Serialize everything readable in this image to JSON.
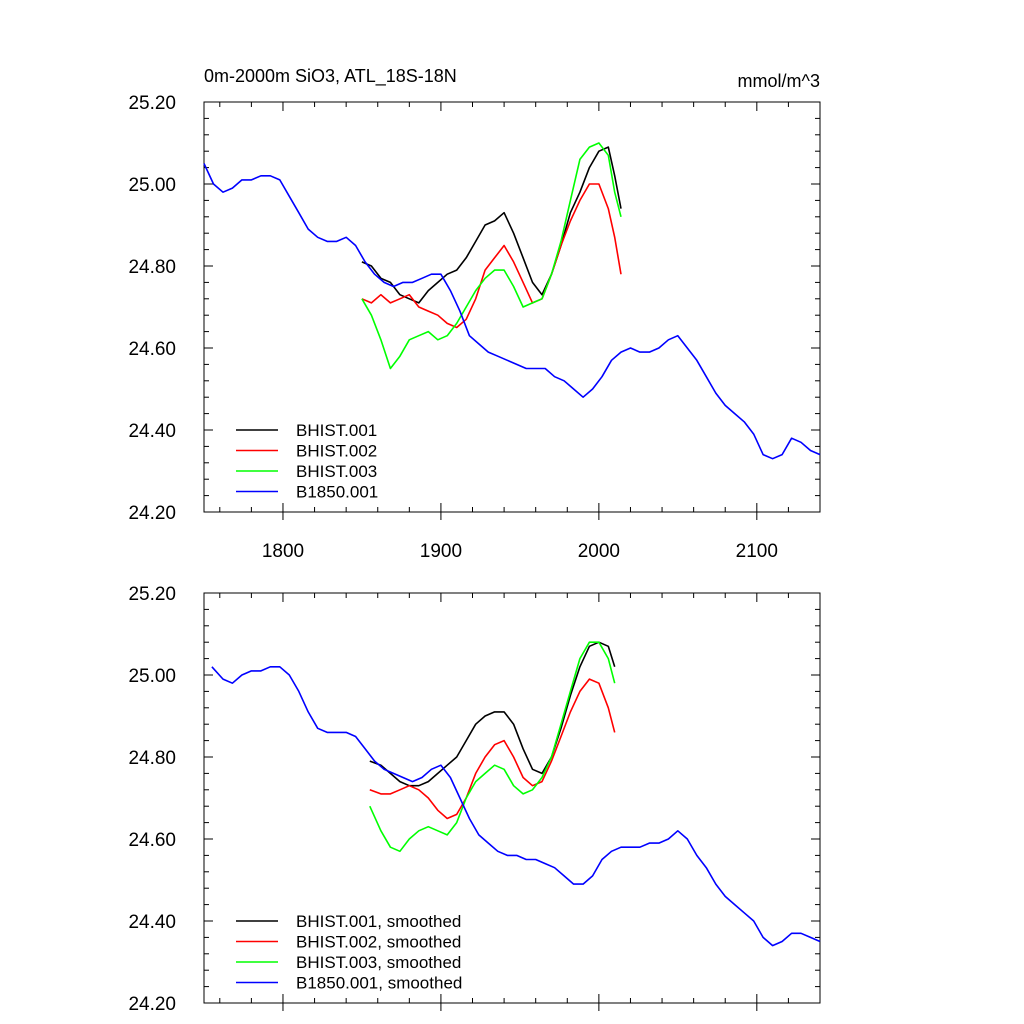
{
  "chart_data": [
    {
      "type": "line",
      "title": "0m-2000m SiO3, ATL_18S-18N",
      "units": "mmol/m^3",
      "xlim": [
        1750,
        2140
      ],
      "ylim": [
        24.2,
        25.2
      ],
      "xticks": [
        1800,
        1900,
        2000,
        2100
      ],
      "xtick_labels": [
        "1800",
        "1900",
        "2000",
        "2100"
      ],
      "yticks": [
        24.2,
        24.4,
        24.6,
        24.8,
        25.0,
        25.2
      ],
      "ytick_labels": [
        "24.20",
        "24.40",
        "24.60",
        "24.80",
        "25.00",
        "25.20"
      ],
      "legend_position": "bottom-left",
      "series": [
        {
          "name": "BHIST.001",
          "color": "#000000",
          "x": [
            1850,
            1856,
            1862,
            1868,
            1874,
            1880,
            1886,
            1892,
            1898,
            1904,
            1910,
            1916,
            1922,
            1928,
            1934,
            1940,
            1946,
            1952,
            1958,
            1964,
            1970,
            1976,
            1982,
            1988,
            1994,
            2000,
            2006,
            2010,
            2014
          ],
          "y": [
            24.81,
            24.8,
            24.77,
            24.76,
            24.73,
            24.72,
            24.71,
            24.74,
            24.76,
            24.78,
            24.79,
            24.82,
            24.86,
            24.9,
            24.91,
            24.93,
            24.88,
            24.82,
            24.76,
            24.73,
            24.78,
            24.85,
            24.93,
            24.98,
            25.04,
            25.08,
            25.09,
            25.02,
            24.94
          ]
        },
        {
          "name": "BHIST.002",
          "color": "#ff0000",
          "x": [
            1850,
            1856,
            1862,
            1868,
            1874,
            1880,
            1886,
            1892,
            1898,
            1904,
            1910,
            1916,
            1922,
            1928,
            1934,
            1940,
            1946,
            1952,
            1958,
            1964,
            1970,
            1976,
            1982,
            1988,
            1994,
            2000,
            2006,
            2010,
            2014
          ],
          "y": [
            24.72,
            24.71,
            24.73,
            24.71,
            24.72,
            24.73,
            24.7,
            24.69,
            24.68,
            24.66,
            24.65,
            24.67,
            24.72,
            24.79,
            24.82,
            24.85,
            24.81,
            24.76,
            24.71,
            24.72,
            24.78,
            24.85,
            24.91,
            24.96,
            25.0,
            25.0,
            24.94,
            24.87,
            24.78
          ]
        },
        {
          "name": "BHIST.003",
          "color": "#00ff00",
          "x": [
            1850,
            1856,
            1862,
            1868,
            1874,
            1880,
            1886,
            1892,
            1898,
            1904,
            1910,
            1916,
            1922,
            1928,
            1934,
            1940,
            1946,
            1952,
            1958,
            1964,
            1970,
            1976,
            1982,
            1988,
            1994,
            2000,
            2006,
            2010,
            2014
          ],
          "y": [
            24.72,
            24.68,
            24.62,
            24.55,
            24.58,
            24.62,
            24.63,
            24.64,
            24.62,
            24.63,
            24.66,
            24.7,
            24.74,
            24.77,
            24.79,
            24.79,
            24.75,
            24.7,
            24.71,
            24.72,
            24.78,
            24.86,
            24.96,
            25.06,
            25.09,
            25.1,
            25.07,
            24.98,
            24.92
          ]
        },
        {
          "name": "B1850.001",
          "color": "#0000ff",
          "x": [
            1750,
            1756,
            1762,
            1768,
            1774,
            1780,
            1786,
            1792,
            1798,
            1804,
            1810,
            1816,
            1822,
            1828,
            1834,
            1840,
            1846,
            1852,
            1858,
            1864,
            1870,
            1876,
            1882,
            1888,
            1894,
            1900,
            1906,
            1912,
            1918,
            1924,
            1930,
            1936,
            1942,
            1948,
            1954,
            1960,
            1966,
            1972,
            1978,
            1984,
            1990,
            1996,
            2002,
            2008,
            2014,
            2020,
            2026,
            2032,
            2038,
            2044,
            2050,
            2056,
            2062,
            2068,
            2074,
            2080,
            2086,
            2092,
            2098,
            2104,
            2110,
            2116,
            2122,
            2128,
            2134,
            2140
          ],
          "y": [
            25.05,
            25.0,
            24.98,
            24.99,
            25.01,
            25.01,
            25.02,
            25.02,
            25.01,
            24.97,
            24.93,
            24.89,
            24.87,
            24.86,
            24.86,
            24.87,
            24.85,
            24.81,
            24.78,
            24.76,
            24.75,
            24.76,
            24.76,
            24.77,
            24.78,
            24.78,
            24.74,
            24.69,
            24.63,
            24.61,
            24.59,
            24.58,
            24.57,
            24.56,
            24.55,
            24.55,
            24.55,
            24.53,
            24.52,
            24.5,
            24.48,
            24.5,
            24.53,
            24.57,
            24.59,
            24.6,
            24.59,
            24.59,
            24.6,
            24.62,
            24.63,
            24.6,
            24.57,
            24.53,
            24.49,
            24.46,
            24.44,
            24.42,
            24.39,
            24.34,
            24.33,
            24.34,
            24.38,
            24.37,
            24.35,
            24.34
          ]
        }
      ]
    },
    {
      "type": "line",
      "xlim": [
        1750,
        2140
      ],
      "ylim": [
        24.2,
        25.2
      ],
      "xticks": [
        1800,
        1900,
        2000,
        2100
      ],
      "yticks": [
        24.2,
        24.4,
        24.6,
        24.8,
        25.0,
        25.2
      ],
      "ytick_labels": [
        "24.20",
        "24.40",
        "24.60",
        "24.80",
        "25.00",
        "25.20"
      ],
      "legend_position": "bottom-left",
      "series": [
        {
          "name": "BHIST.001, smoothed",
          "color": "#000000",
          "x": [
            1855,
            1862,
            1868,
            1874,
            1880,
            1886,
            1892,
            1898,
            1904,
            1910,
            1916,
            1922,
            1928,
            1934,
            1940,
            1946,
            1952,
            1958,
            1964,
            1970,
            1976,
            1982,
            1988,
            1994,
            2000,
            2006,
            2010
          ],
          "y": [
            24.79,
            24.78,
            24.76,
            24.74,
            24.73,
            24.73,
            24.74,
            24.76,
            24.78,
            24.8,
            24.84,
            24.88,
            24.9,
            24.91,
            24.91,
            24.88,
            24.82,
            24.77,
            24.76,
            24.8,
            24.87,
            24.95,
            25.02,
            25.07,
            25.08,
            25.07,
            25.02
          ]
        },
        {
          "name": "BHIST.002, smoothed",
          "color": "#ff0000",
          "x": [
            1855,
            1862,
            1868,
            1874,
            1880,
            1886,
            1892,
            1898,
            1904,
            1910,
            1916,
            1922,
            1928,
            1934,
            1940,
            1946,
            1952,
            1958,
            1964,
            1970,
            1976,
            1982,
            1988,
            1994,
            2000,
            2006,
            2010
          ],
          "y": [
            24.72,
            24.71,
            24.71,
            24.72,
            24.73,
            24.72,
            24.7,
            24.67,
            24.65,
            24.66,
            24.7,
            24.76,
            24.8,
            24.83,
            24.84,
            24.8,
            24.75,
            24.73,
            24.74,
            24.79,
            24.85,
            24.91,
            24.96,
            24.99,
            24.98,
            24.92,
            24.86
          ]
        },
        {
          "name": "BHIST.003, smoothed",
          "color": "#00ff00",
          "x": [
            1855,
            1862,
            1868,
            1874,
            1880,
            1886,
            1892,
            1898,
            1904,
            1910,
            1916,
            1922,
            1928,
            1934,
            1940,
            1946,
            1952,
            1958,
            1964,
            1970,
            1976,
            1982,
            1988,
            1994,
            2000,
            2006,
            2010
          ],
          "y": [
            24.68,
            24.62,
            24.58,
            24.57,
            24.6,
            24.62,
            24.63,
            24.62,
            24.61,
            24.64,
            24.7,
            24.74,
            24.76,
            24.78,
            24.77,
            24.73,
            24.71,
            24.72,
            24.75,
            24.8,
            24.88,
            24.96,
            25.04,
            25.08,
            25.08,
            25.04,
            24.98
          ]
        },
        {
          "name": "B1850.001, smoothed",
          "color": "#0000ff",
          "x": [
            1755,
            1762,
            1768,
            1774,
            1780,
            1786,
            1792,
            1798,
            1804,
            1810,
            1816,
            1822,
            1828,
            1834,
            1840,
            1846,
            1852,
            1858,
            1864,
            1870,
            1876,
            1882,
            1888,
            1894,
            1900,
            1906,
            1912,
            1918,
            1924,
            1930,
            1936,
            1942,
            1948,
            1954,
            1960,
            1966,
            1972,
            1978,
            1984,
            1990,
            1996,
            2002,
            2008,
            2014,
            2020,
            2026,
            2032,
            2038,
            2044,
            2050,
            2056,
            2062,
            2068,
            2074,
            2080,
            2086,
            2092,
            2098,
            2104,
            2110,
            2116,
            2122,
            2128,
            2134,
            2140
          ],
          "y": [
            25.02,
            24.99,
            24.98,
            25.0,
            25.01,
            25.01,
            25.02,
            25.02,
            25.0,
            24.96,
            24.91,
            24.87,
            24.86,
            24.86,
            24.86,
            24.85,
            24.82,
            24.79,
            24.77,
            24.76,
            24.75,
            24.74,
            24.75,
            24.77,
            24.78,
            24.75,
            24.7,
            24.65,
            24.61,
            24.59,
            24.57,
            24.56,
            24.56,
            24.55,
            24.55,
            24.54,
            24.53,
            24.51,
            24.49,
            24.49,
            24.51,
            24.55,
            24.57,
            24.58,
            24.58,
            24.58,
            24.59,
            24.59,
            24.6,
            24.62,
            24.6,
            24.56,
            24.53,
            24.49,
            24.46,
            24.44,
            24.42,
            24.4,
            24.36,
            24.34,
            24.35,
            24.37,
            24.37,
            24.36,
            24.35
          ]
        }
      ]
    }
  ]
}
